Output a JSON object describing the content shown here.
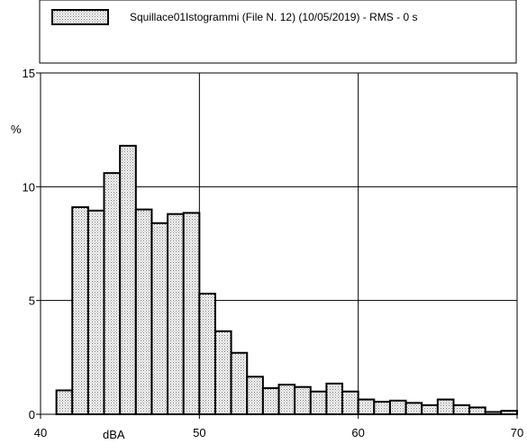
{
  "chart_data": {
    "type": "bar",
    "legend": {
      "label": "Squillace01Istogrammi  (File N. 12) (10/05/2019) - RMS - 0 s",
      "placement": "top"
    },
    "xlabel": "dBA",
    "ylabel": "%",
    "xlim": [
      40,
      70
    ],
    "ylim": [
      0,
      15
    ],
    "x_ticks": [
      40,
      50,
      60,
      70
    ],
    "y_ticks": [
      0,
      5,
      10,
      15
    ],
    "grid": true,
    "bin_width": 1,
    "bins": [
      {
        "x0": 40,
        "value": 0
      },
      {
        "x0": 41,
        "value": 1.05
      },
      {
        "x0": 42,
        "value": 9.1
      },
      {
        "x0": 43,
        "value": 8.95
      },
      {
        "x0": 44,
        "value": 10.6
      },
      {
        "x0": 45,
        "value": 11.8
      },
      {
        "x0": 46,
        "value": 9.0
      },
      {
        "x0": 47,
        "value": 8.4
      },
      {
        "x0": 48,
        "value": 8.8
      },
      {
        "x0": 49,
        "value": 8.85
      },
      {
        "x0": 50,
        "value": 5.3
      },
      {
        "x0": 51,
        "value": 3.65
      },
      {
        "x0": 52,
        "value": 2.7
      },
      {
        "x0": 53,
        "value": 1.65
      },
      {
        "x0": 54,
        "value": 1.15
      },
      {
        "x0": 55,
        "value": 1.3
      },
      {
        "x0": 56,
        "value": 1.2
      },
      {
        "x0": 57,
        "value": 1.0
      },
      {
        "x0": 58,
        "value": 1.35
      },
      {
        "x0": 59,
        "value": 1.0
      },
      {
        "x0": 60,
        "value": 0.65
      },
      {
        "x0": 61,
        "value": 0.55
      },
      {
        "x0": 62,
        "value": 0.6
      },
      {
        "x0": 63,
        "value": 0.5
      },
      {
        "x0": 64,
        "value": 0.4
      },
      {
        "x0": 65,
        "value": 0.65
      },
      {
        "x0": 66,
        "value": 0.4
      },
      {
        "x0": 67,
        "value": 0.3
      },
      {
        "x0": 68,
        "value": 0.1
      },
      {
        "x0": 69,
        "value": 0.15
      }
    ],
    "colors": {
      "bar_fill": "#d9d9d9",
      "bar_stroke": "#000000",
      "grid": "#000000",
      "background": "#ffffff"
    }
  }
}
